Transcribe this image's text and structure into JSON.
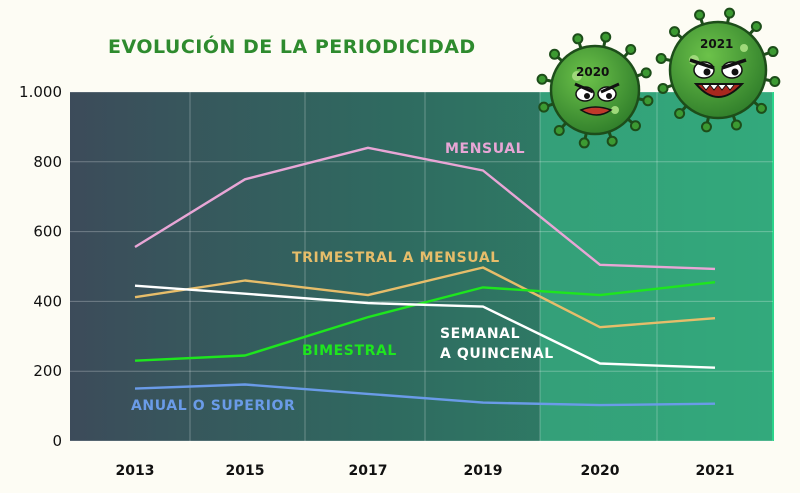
{
  "chart_data": {
    "type": "line",
    "title": "EVOLUCIÓN DE LA PERIODICIDAD",
    "xlabel": "",
    "ylabel": "",
    "categories": [
      "2013",
      "2015",
      "2017",
      "2019",
      "2020",
      "2021"
    ],
    "ylim": [
      0,
      1000
    ],
    "yticks": [
      {
        "value": 0,
        "label": "0"
      },
      {
        "value": 200,
        "label": "200"
      },
      {
        "value": 400,
        "label": "400"
      },
      {
        "value": 600,
        "label": "600"
      },
      {
        "value": 800,
        "label": "800"
      },
      {
        "value": 1000,
        "label": "1.000"
      }
    ],
    "grid": true,
    "series": [
      {
        "name": "MENSUAL",
        "color": "#e8a6d6",
        "values": [
          556,
          750,
          840,
          775,
          505,
          493
        ]
      },
      {
        "name": "TRIMESTRAL A MENSUAL",
        "color": "#e6bd6a",
        "values": [
          412,
          460,
          418,
          497,
          326,
          352
        ]
      },
      {
        "name": "BIMESTRAL",
        "color": "#1ee61e",
        "values": [
          230,
          245,
          355,
          440,
          418,
          455
        ]
      },
      {
        "name": "SEMANAL\nA QUINCENAL",
        "color": "#ffffff",
        "values": [
          445,
          422,
          395,
          385,
          222,
          210
        ]
      },
      {
        "name": "ANUAL O SUPERIOR",
        "color": "#6a9be8",
        "values": [
          150,
          162,
          135,
          110,
          103,
          107
        ]
      }
    ],
    "highlight_years": [
      "2020",
      "2021"
    ]
  },
  "illustration": {
    "virus_2020_label": "2020",
    "virus_2021_label": "2021",
    "icon": "coronavirus-mascot-icon"
  }
}
